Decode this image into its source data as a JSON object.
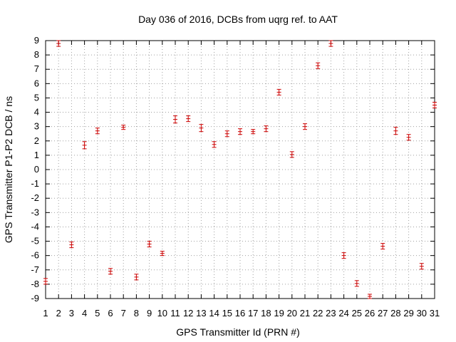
{
  "chart_data": {
    "type": "scatter",
    "title": "Day 036 of 2016, DCBs from uqrg ref. to AAT",
    "xlabel": "GPS Transmitter Id (PRN #)",
    "ylabel": "GPS Transmitter P1-P2 DCB / ns",
    "xlim": [
      1,
      31
    ],
    "ylim": [
      -9,
      9
    ],
    "xticks": [
      1,
      2,
      3,
      4,
      5,
      6,
      7,
      8,
      9,
      10,
      11,
      12,
      13,
      14,
      15,
      16,
      17,
      18,
      19,
      20,
      21,
      22,
      23,
      24,
      25,
      26,
      27,
      28,
      29,
      30,
      31
    ],
    "xtick_labels": [
      "1",
      "2",
      "3",
      "4",
      "5",
      "6",
      "7",
      "8",
      "9",
      "10",
      "11",
      "12",
      "13",
      "14",
      "15",
      "16",
      "17",
      "18",
      "19",
      "20",
      "21",
      "22",
      "23",
      "24",
      "25",
      "26",
      "27",
      "28",
      "29",
      "30",
      "31"
    ],
    "yticks": [
      9,
      8,
      7,
      6,
      5,
      4,
      3,
      2,
      1,
      0,
      -1,
      -2,
      -3,
      -4,
      -5,
      -6,
      -7,
      -8,
      -9
    ],
    "ytick_labels": [
      "9",
      "8",
      "7",
      "6",
      "5",
      "4",
      "3",
      "2",
      "1",
      "0",
      "-1",
      "-2",
      "-3",
      "-4",
      "-5",
      "-6",
      "-7",
      "-8",
      "-9"
    ],
    "grid": true,
    "color": "#cc0000",
    "points": [
      {
        "x": 1,
        "y": -7.8,
        "err": 0.2
      },
      {
        "x": 2,
        "y": 8.8,
        "err": 0.2
      },
      {
        "x": 3,
        "y": -5.25,
        "err": 0.2
      },
      {
        "x": 4,
        "y": 1.7,
        "err": 0.25
      },
      {
        "x": 5,
        "y": 2.7,
        "err": 0.2
      },
      {
        "x": 6,
        "y": -7.1,
        "err": 0.2
      },
      {
        "x": 7,
        "y": 2.95,
        "err": 0.15
      },
      {
        "x": 8,
        "y": -7.5,
        "err": 0.2
      },
      {
        "x": 9,
        "y": -5.2,
        "err": 0.2
      },
      {
        "x": 10,
        "y": -5.85,
        "err": 0.15
      },
      {
        "x": 11,
        "y": 3.5,
        "err": 0.25
      },
      {
        "x": 12,
        "y": 3.55,
        "err": 0.2
      },
      {
        "x": 13,
        "y": 2.9,
        "err": 0.25
      },
      {
        "x": 14,
        "y": 1.75,
        "err": 0.2
      },
      {
        "x": 15,
        "y": 2.5,
        "err": 0.2
      },
      {
        "x": 16,
        "y": 2.65,
        "err": 0.2
      },
      {
        "x": 17,
        "y": 2.65,
        "err": 0.15
      },
      {
        "x": 18,
        "y": 2.85,
        "err": 0.2
      },
      {
        "x": 19,
        "y": 5.4,
        "err": 0.2
      },
      {
        "x": 20,
        "y": 1.05,
        "err": 0.2
      },
      {
        "x": 21,
        "y": 3.0,
        "err": 0.2
      },
      {
        "x": 22,
        "y": 7.25,
        "err": 0.2
      },
      {
        "x": 23,
        "y": 8.8,
        "err": 0.2
      },
      {
        "x": 24,
        "y": -6.0,
        "err": 0.2
      },
      {
        "x": 25,
        "y": -7.95,
        "err": 0.2
      },
      {
        "x": 26,
        "y": -8.85,
        "err": 0.15
      },
      {
        "x": 27,
        "y": -5.35,
        "err": 0.2
      },
      {
        "x": 28,
        "y": 2.7,
        "err": 0.25
      },
      {
        "x": 29,
        "y": 2.25,
        "err": 0.2
      },
      {
        "x": 30,
        "y": -6.75,
        "err": 0.2
      },
      {
        "x": 31,
        "y": 4.5,
        "err": 0.2
      }
    ]
  }
}
